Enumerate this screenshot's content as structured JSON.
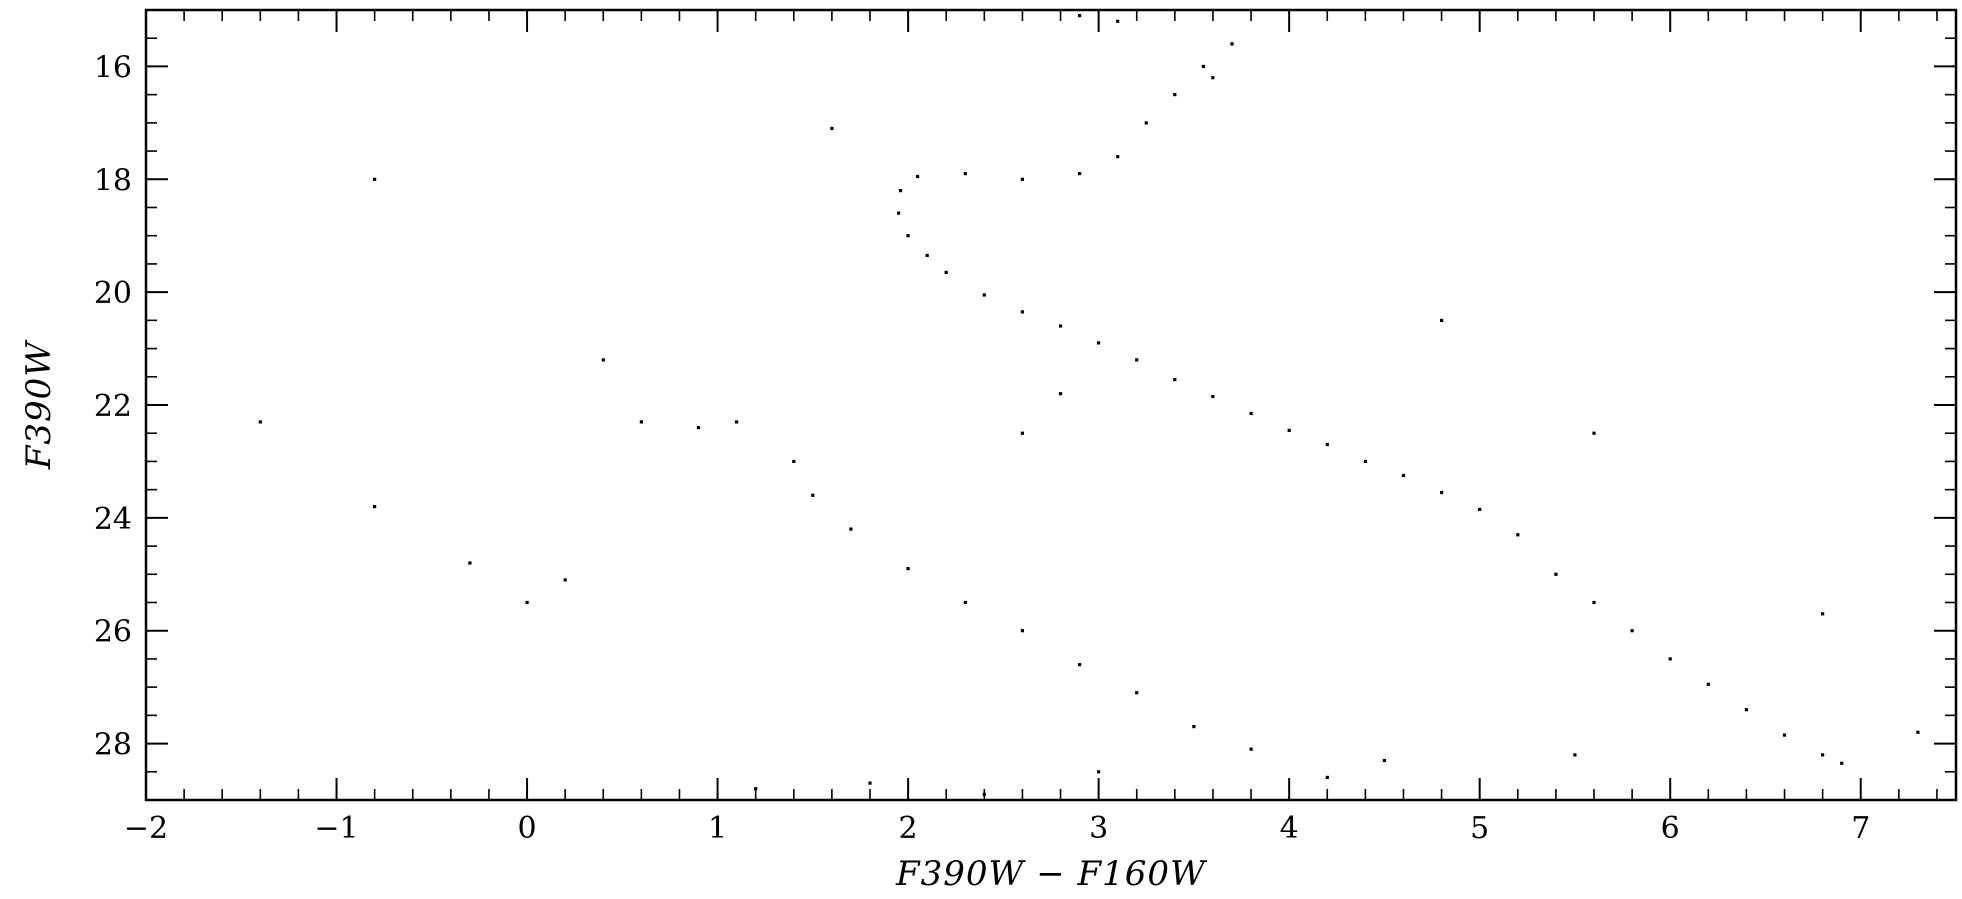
{
  "chart_data": {
    "type": "scatter",
    "title": "",
    "xlabel": "F390W − F160W",
    "ylabel": "F390W",
    "xlim": [
      -2,
      7.5
    ],
    "ylim": [
      29,
      15
    ],
    "y_inverted": true,
    "grid": false,
    "legend": "none",
    "marker_color": "#000000",
    "x_ticks": [
      {
        "value": -2,
        "label": "−2"
      },
      {
        "value": -1,
        "label": "−1"
      },
      {
        "value": 0,
        "label": "0"
      },
      {
        "value": 1,
        "label": "1"
      },
      {
        "value": 2,
        "label": "2"
      },
      {
        "value": 3,
        "label": "3"
      },
      {
        "value": 4,
        "label": "4"
      },
      {
        "value": 5,
        "label": "5"
      },
      {
        "value": 6,
        "label": "6"
      },
      {
        "value": 7,
        "label": "7"
      }
    ],
    "y_ticks": [
      {
        "value": 16,
        "label": "16"
      },
      {
        "value": 18,
        "label": "18"
      },
      {
        "value": 20,
        "label": "20"
      },
      {
        "value": 22,
        "label": "22"
      },
      {
        "value": 24,
        "label": "24"
      },
      {
        "value": 26,
        "label": "26"
      },
      {
        "value": 28,
        "label": "28"
      }
    ],
    "x_minor_step": 0.2,
    "y_minor_step": 0.5,
    "series": [
      {
        "points": [
          [
            6.9,
            28.35
          ],
          [
            6.8,
            28.2
          ],
          [
            6.6,
            27.85
          ],
          [
            6.4,
            27.4
          ],
          [
            6.2,
            26.95
          ],
          [
            6.0,
            26.5
          ],
          [
            5.8,
            26.0
          ],
          [
            5.6,
            25.5
          ],
          [
            5.4,
            25.0
          ],
          [
            5.2,
            24.3
          ],
          [
            5.0,
            23.85
          ],
          [
            4.8,
            23.55
          ],
          [
            4.6,
            23.25
          ],
          [
            4.4,
            23.0
          ],
          [
            4.2,
            22.7
          ],
          [
            4.0,
            22.45
          ],
          [
            3.8,
            22.15
          ],
          [
            3.6,
            21.85
          ],
          [
            3.4,
            21.55
          ],
          [
            3.2,
            21.2
          ],
          [
            3.0,
            20.9
          ],
          [
            2.8,
            20.6
          ],
          [
            2.6,
            20.35
          ],
          [
            2.4,
            20.05
          ],
          [
            2.2,
            19.65
          ],
          [
            2.1,
            19.35
          ],
          [
            2.0,
            19.0
          ],
          [
            1.95,
            18.6
          ],
          [
            1.96,
            18.2
          ],
          [
            2.05,
            17.95
          ],
          [
            2.3,
            17.9
          ],
          [
            2.6,
            18.0
          ],
          [
            2.9,
            17.9
          ],
          [
            3.1,
            17.6
          ],
          [
            3.25,
            17.0
          ],
          [
            3.4,
            16.5
          ],
          [
            3.55,
            16.0
          ],
          [
            3.7,
            15.6
          ],
          [
            3.1,
            15.2
          ],
          [
            2.9,
            15.1
          ],
          [
            1.4,
            23.0
          ],
          [
            1.5,
            23.6
          ],
          [
            1.7,
            24.2
          ],
          [
            2.0,
            24.9
          ],
          [
            2.3,
            25.5
          ],
          [
            2.6,
            26.0
          ],
          [
            2.9,
            26.6
          ],
          [
            3.2,
            27.1
          ],
          [
            3.5,
            27.7
          ],
          [
            3.8,
            28.1
          ],
          [
            4.2,
            28.6
          ],
          [
            0.9,
            22.4
          ],
          [
            1.1,
            22.3
          ],
          [
            2.6,
            22.5
          ],
          [
            2.8,
            21.8
          ],
          [
            -0.8,
            23.8
          ],
          [
            -0.3,
            24.8
          ],
          [
            0.2,
            25.1
          ],
          [
            0.4,
            21.2
          ],
          [
            0.6,
            22.3
          ],
          [
            1.2,
            28.8
          ],
          [
            1.8,
            28.7
          ],
          [
            2.4,
            28.9
          ],
          [
            3.0,
            28.5
          ],
          [
            4.5,
            28.3
          ],
          [
            5.5,
            28.2
          ],
          [
            6.8,
            25.7
          ],
          [
            7.3,
            27.8
          ],
          [
            4.8,
            20.5
          ],
          [
            5.6,
            22.5
          ],
          [
            3.6,
            16.2
          ],
          [
            -1.4,
            22.3
          ],
          [
            -0.8,
            18.0
          ],
          [
            0.0,
            25.5
          ],
          [
            1.6,
            17.1
          ]
        ]
      }
    ]
  }
}
